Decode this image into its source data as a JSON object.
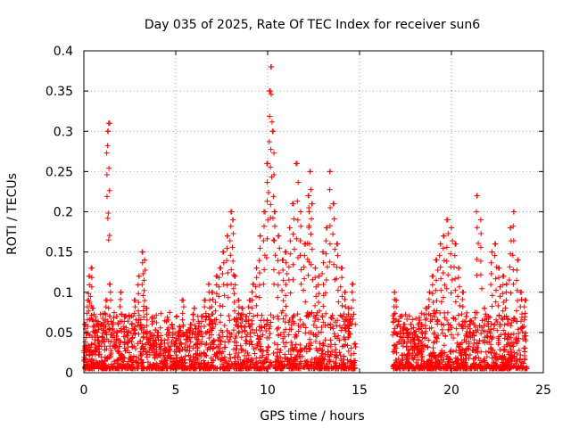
{
  "chart_data": {
    "type": "scatter",
    "title": "Day 035 of 2025, Rate Of TEC Index for receiver sun6",
    "xlabel": "GPS time / hours",
    "ylabel": "ROTI / TECUs",
    "xlim": [
      0,
      25
    ],
    "ylim": [
      0,
      0.4
    ],
    "grid": true,
    "x_ticks": [
      0,
      5,
      10,
      15,
      20,
      25
    ],
    "x_tick_labels": [
      "0",
      "5",
      "10",
      "15",
      "20",
      "25"
    ],
    "y_ticks": [
      0,
      0.05,
      0.1,
      0.15,
      0.2,
      0.25,
      0.3,
      0.35,
      0.4
    ],
    "y_tick_labels": [
      "0",
      "0.05",
      "0.1",
      "0.15",
      "0.2",
      "0.25",
      "0.3",
      "0.35",
      "0.4"
    ],
    "marker": "+",
    "marker_color": "#ff0000",
    "data_gap_hours": [
      14.8,
      16.8
    ],
    "series": [
      {
        "name": "sun6",
        "x": [
          0.05,
          0.1,
          0.2,
          0.3,
          0.4,
          0.5,
          0.6,
          0.8,
          1.0,
          1.2,
          1.3,
          1.35,
          1.4,
          1.6,
          1.8,
          2.0,
          2.2,
          2.4,
          2.6,
          2.8,
          3.0,
          3.2,
          3.3,
          3.4,
          3.6,
          3.8,
          4.0,
          4.2,
          4.4,
          4.6,
          4.8,
          5.0,
          5.2,
          5.4,
          5.6,
          5.8,
          6.0,
          6.2,
          6.4,
          6.6,
          6.8,
          7.0,
          7.2,
          7.4,
          7.6,
          7.8,
          8.0,
          8.1,
          8.2,
          8.4,
          8.6,
          8.8,
          9.0,
          9.2,
          9.4,
          9.6,
          9.8,
          10.0,
          10.1,
          10.2,
          10.3,
          10.4,
          10.6,
          10.8,
          11.0,
          11.2,
          11.4,
          11.6,
          11.8,
          12.0,
          12.2,
          12.3,
          12.4,
          12.6,
          12.8,
          13.0,
          13.2,
          13.4,
          13.6,
          13.8,
          14.0,
          14.2,
          14.4,
          14.6,
          16.9,
          17.0,
          17.2,
          17.4,
          17.6,
          17.8,
          18.0,
          18.2,
          18.4,
          18.6,
          18.8,
          19.0,
          19.2,
          19.4,
          19.6,
          19.8,
          20.0,
          20.2,
          20.4,
          20.6,
          20.8,
          21.0,
          21.2,
          21.4,
          21.6,
          21.8,
          22.0,
          22.2,
          22.4,
          22.6,
          22.8,
          23.0,
          23.2,
          23.4,
          23.6,
          23.8,
          24.0
        ],
        "y": [
          0.03,
          0.06,
          0.09,
          0.12,
          0.13,
          0.08,
          0.05,
          0.04,
          0.06,
          0.09,
          0.3,
          0.31,
          0.11,
          0.06,
          0.05,
          0.1,
          0.07,
          0.05,
          0.06,
          0.09,
          0.12,
          0.15,
          0.14,
          0.08,
          0.05,
          0.04,
          0.05,
          0.04,
          0.03,
          0.05,
          0.06,
          0.04,
          0.05,
          0.09,
          0.05,
          0.06,
          0.08,
          0.05,
          0.07,
          0.09,
          0.11,
          0.1,
          0.12,
          0.13,
          0.15,
          0.17,
          0.2,
          0.19,
          0.12,
          0.09,
          0.08,
          0.07,
          0.09,
          0.11,
          0.13,
          0.17,
          0.2,
          0.26,
          0.35,
          0.38,
          0.3,
          0.2,
          0.17,
          0.14,
          0.15,
          0.18,
          0.21,
          0.26,
          0.2,
          0.16,
          0.22,
          0.25,
          0.21,
          0.13,
          0.12,
          0.15,
          0.18,
          0.25,
          0.21,
          0.16,
          0.13,
          0.1,
          0.08,
          0.11,
          0.1,
          0.09,
          0.07,
          0.06,
          0.05,
          0.06,
          0.05,
          0.04,
          0.06,
          0.08,
          0.1,
          0.12,
          0.14,
          0.16,
          0.17,
          0.19,
          0.18,
          0.16,
          0.13,
          0.1,
          0.07,
          0.06,
          0.05,
          0.22,
          0.19,
          0.08,
          0.07,
          0.15,
          0.16,
          0.13,
          0.12,
          0.11,
          0.18,
          0.2,
          0.14,
          0.1,
          0.09
        ]
      }
    ]
  }
}
